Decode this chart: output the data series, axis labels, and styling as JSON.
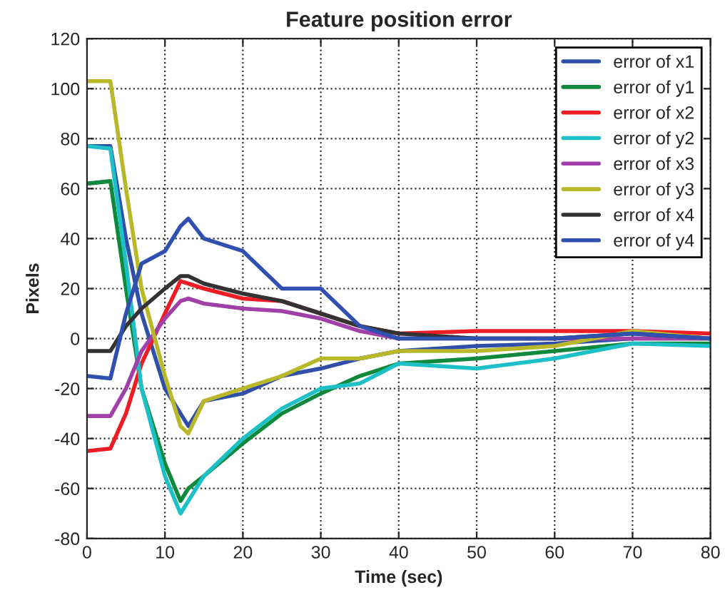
{
  "chart_data": {
    "type": "line",
    "title": "Feature position error",
    "xlabel": "Time (sec)",
    "ylabel": "Pixels",
    "x": [
      0,
      3,
      5,
      7,
      10,
      12,
      13,
      15,
      20,
      25,
      30,
      35,
      40,
      50,
      60,
      70,
      80
    ],
    "series": [
      {
        "name": "error of x1",
        "color": "#2f4fa8",
        "values": [
          77,
          77,
          40,
          10,
          -20,
          -30,
          -35,
          -25,
          -22,
          -15,
          -12,
          -8,
          -5,
          -3,
          -2,
          0,
          0
        ]
      },
      {
        "name": "error of y1",
        "color": "#0f8a3c",
        "values": [
          62,
          63,
          20,
          -20,
          -50,
          -65,
          -60,
          -55,
          -42,
          -30,
          -22,
          -15,
          -10,
          -8,
          -5,
          -2,
          -2
        ]
      },
      {
        "name": "error of x2",
        "color": "#ee1c24",
        "values": [
          -45,
          -44,
          -30,
          -10,
          10,
          23,
          22,
          20,
          16,
          15,
          10,
          5,
          2,
          3,
          3,
          3,
          2
        ]
      },
      {
        "name": "error of y2",
        "color": "#1ec0c8",
        "values": [
          77,
          76,
          30,
          -20,
          -55,
          -70,
          -65,
          -55,
          -40,
          -28,
          -20,
          -18,
          -10,
          -12,
          -8,
          -2,
          -3
        ]
      },
      {
        "name": "error of x3",
        "color": "#a040a8",
        "values": [
          -31,
          -31,
          -20,
          -5,
          8,
          15,
          16,
          14,
          12,
          11,
          8,
          3,
          0,
          0,
          0,
          0,
          0
        ]
      },
      {
        "name": "error of y3",
        "color": "#b8b82a",
        "values": [
          103,
          103,
          60,
          20,
          -15,
          -35,
          -38,
          -25,
          -20,
          -15,
          -8,
          -8,
          -5,
          -5,
          -3,
          3,
          0
        ]
      },
      {
        "name": "error of x4",
        "color": "#333333",
        "values": [
          -5,
          -5,
          5,
          12,
          20,
          25,
          25,
          22,
          18,
          15,
          10,
          5,
          2,
          0,
          0,
          2,
          0
        ]
      },
      {
        "name": "error of y4",
        "color": "#3050b0",
        "values": [
          -15,
          -16,
          10,
          30,
          35,
          45,
          48,
          40,
          35,
          20,
          20,
          5,
          0,
          0,
          0,
          2,
          0
        ]
      }
    ],
    "xlim": [
      0,
      80
    ],
    "xticks": [
      0,
      10,
      20,
      30,
      40,
      50,
      60,
      70,
      80
    ],
    "ylim": [
      -80,
      120
    ],
    "yticks": [
      -80,
      -60,
      -40,
      -20,
      0,
      20,
      40,
      60,
      80,
      100,
      120
    ],
    "grid": true,
    "legend": "top right",
    "line_style": "solid",
    "marker": "none"
  }
}
